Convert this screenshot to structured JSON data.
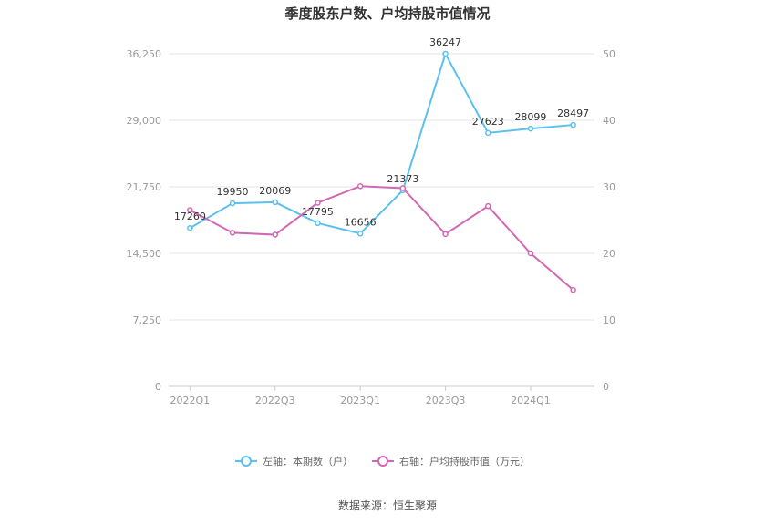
{
  "chart_data": {
    "type": "line",
    "title": "季度股东户数、户均持股市值情况",
    "x": [
      "2022Q1",
      "2022Q2",
      "2022Q3",
      "2022Q4",
      "2023Q1",
      "2023Q2",
      "2023Q3",
      "2023Q4",
      "2024Q1",
      "2024Q2"
    ],
    "x_tick_labels": [
      "2022Q1",
      "2022Q3",
      "2023Q1",
      "2023Q3",
      "2024Q1"
    ],
    "y_left": {
      "min": 0,
      "max": 36250,
      "ticks": [
        "0",
        "7,250",
        "14,500",
        "21,750",
        "29,000",
        "36,250"
      ]
    },
    "y_right": {
      "min": 0,
      "max": 50,
      "ticks": [
        "0",
        "10",
        "20",
        "30",
        "40",
        "50"
      ]
    },
    "grid": true,
    "legend_position": "bottom",
    "series": [
      {
        "name": "左轴：本期数（户）",
        "axis": "left",
        "color": "#5bc0f0",
        "values": [
          17260,
          19950,
          20069,
          17795,
          16656,
          21373,
          36247,
          27623,
          28099,
          28497
        ],
        "labels": [
          "17260",
          "19950",
          "20069",
          "17795",
          "16656",
          "21373",
          "36247",
          "27623",
          "28099",
          "28497"
        ]
      },
      {
        "name": "右轴：户均持股市值（万元）",
        "axis": "right",
        "color": "#d168b4",
        "values": [
          26.5,
          23.1,
          22.8,
          27.6,
          30.1,
          29.8,
          22.9,
          27.1,
          20.0,
          14.5
        ]
      }
    ]
  },
  "source": "数据来源：恒生聚源"
}
